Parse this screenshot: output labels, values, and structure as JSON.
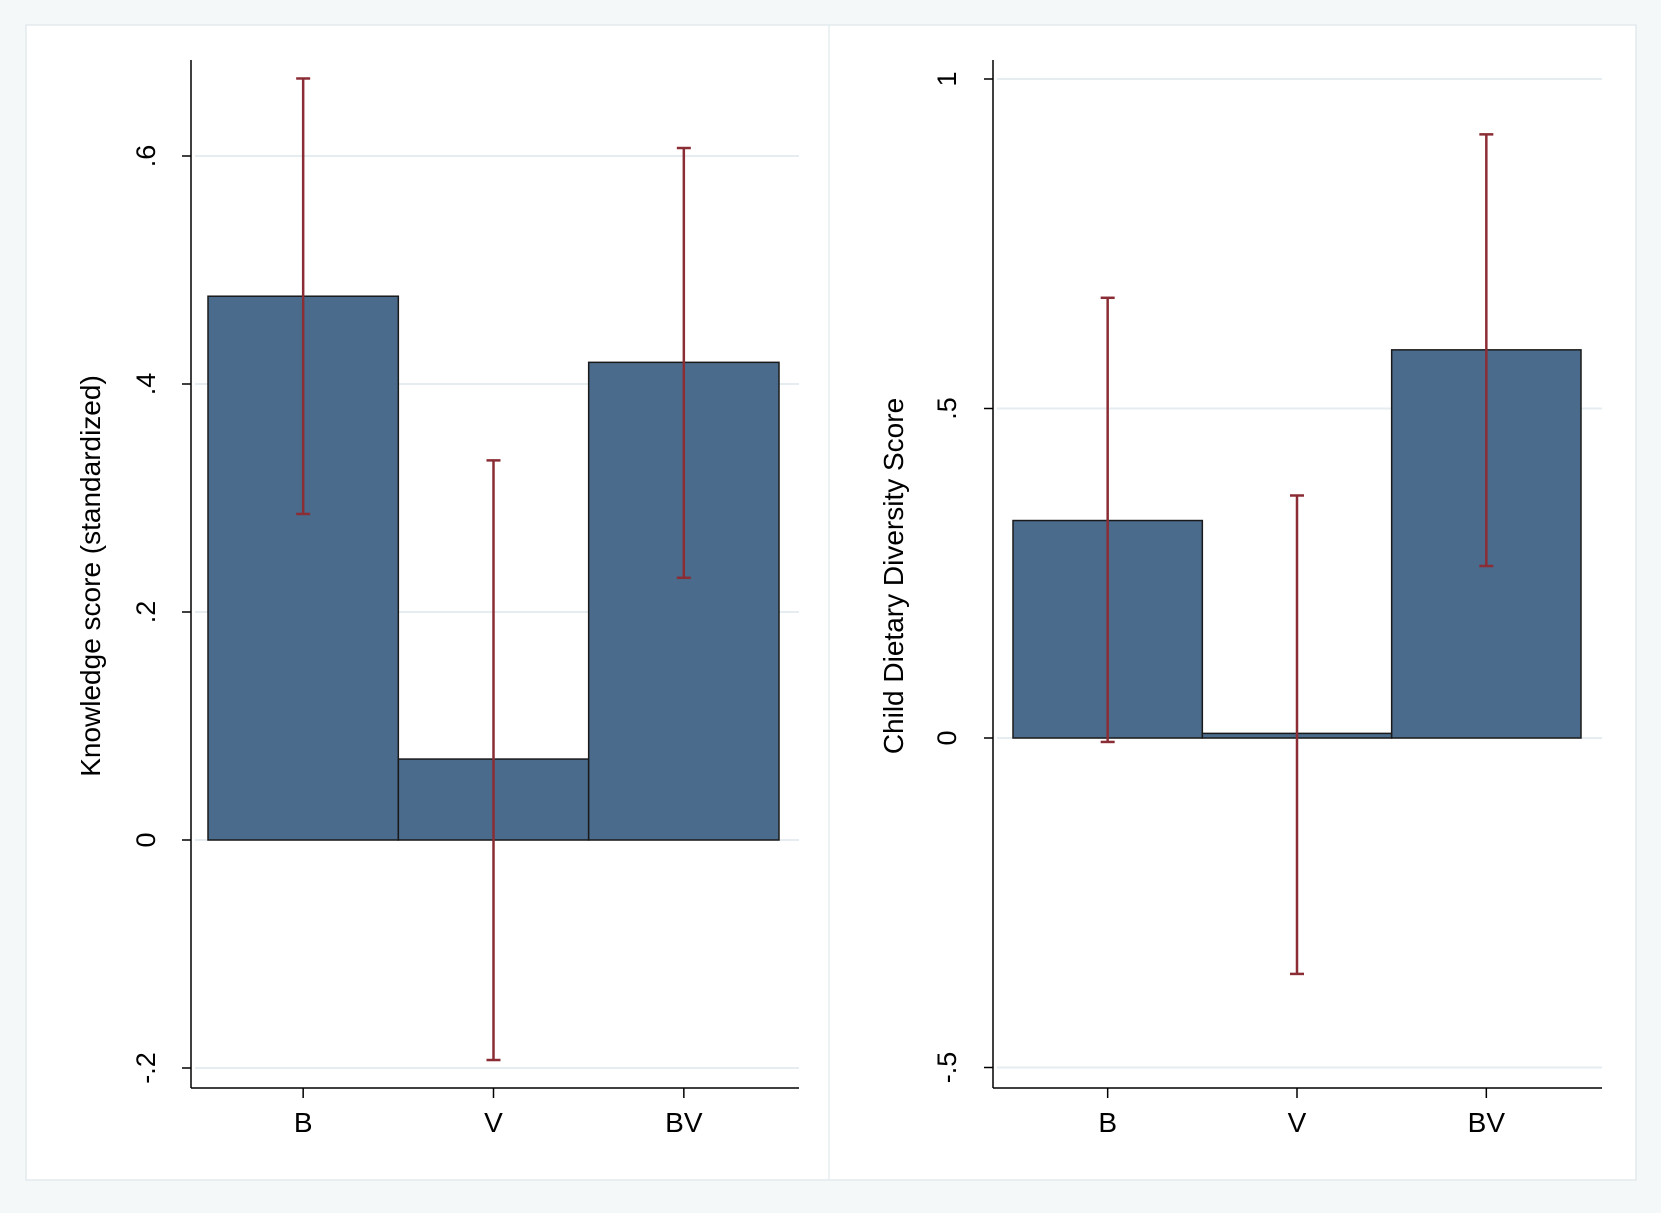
{
  "chart_data": [
    {
      "type": "bar",
      "categories": [
        "B",
        "V",
        "BV"
      ],
      "values": [
        0.477,
        0.071,
        0.419
      ],
      "error_bars": [
        [
          0.286,
          0.668
        ],
        [
          -0.193,
          0.333
        ],
        [
          0.23,
          0.607
        ]
      ],
      "ylabel": "Knowledge score (standardized)",
      "xlabel": "",
      "ylim": [
        -0.2,
        0.68
      ],
      "yticks": [
        -0.2,
        0,
        0.2,
        0.4,
        0.6
      ],
      "ytick_labels": [
        "-.2",
        "0",
        ".2",
        ".4",
        ".6"
      ],
      "grid": true
    },
    {
      "type": "bar",
      "categories": [
        "B",
        "V",
        "BV"
      ],
      "values": [
        0.33,
        0.007,
        0.589
      ],
      "error_bars": [
        [
          -0.006,
          0.668
        ],
        [
          -0.358,
          0.368
        ],
        [
          0.261,
          0.916
        ]
      ],
      "ylabel": "Child Dietary Diversity Score",
      "xlabel": "",
      "ylim": [
        -0.5,
        1.0
      ],
      "yticks": [
        -0.5,
        0,
        0.5,
        1
      ],
      "ytick_labels": [
        "-.5",
        "0",
        ".5",
        "1"
      ],
      "grid": true
    }
  ],
  "colors": {
    "bar_fill": "#4a6b8b",
    "bar_stroke": "#1a1a1a",
    "error_bar": "#8b2d35",
    "grid": "#e6edf0",
    "plot_background": "#ffffff",
    "outer_background": "#f4f8f9"
  }
}
